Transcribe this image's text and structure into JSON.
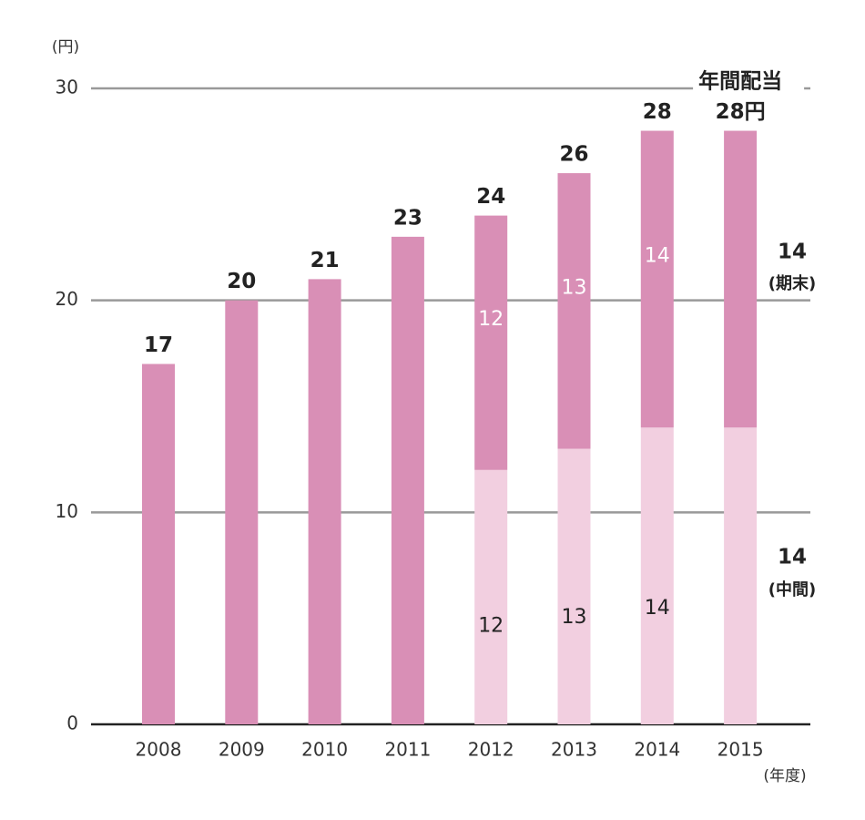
{
  "chart_data": {
    "type": "stacked_bar",
    "y_unit": "(円)",
    "x_unit": "(年度)",
    "categories": [
      "2008",
      "2009",
      "2010",
      "2011",
      "2012",
      "2013",
      "2014",
      "2015"
    ],
    "series": [
      {
        "name": "(中間)",
        "color": "#f2cfe0",
        "values": [
          null,
          null,
          null,
          null,
          12,
          13,
          14,
          14
        ]
      },
      {
        "name": "(期末)",
        "color": "#d98fb6",
        "values": [
          17,
          20,
          21,
          23,
          12,
          13,
          14,
          14
        ]
      }
    ],
    "totals": {
      "values": [
        17,
        20,
        21,
        23,
        24,
        26,
        28,
        28
      ],
      "value_labels": [
        "17",
        "20",
        "21",
        "23",
        "24",
        "26",
        "28",
        "28円"
      ]
    },
    "annotation": "年間配当",
    "ylim": [
      0,
      30
    ],
    "yticks": [
      0,
      10,
      20,
      30
    ],
    "grid": true
  }
}
